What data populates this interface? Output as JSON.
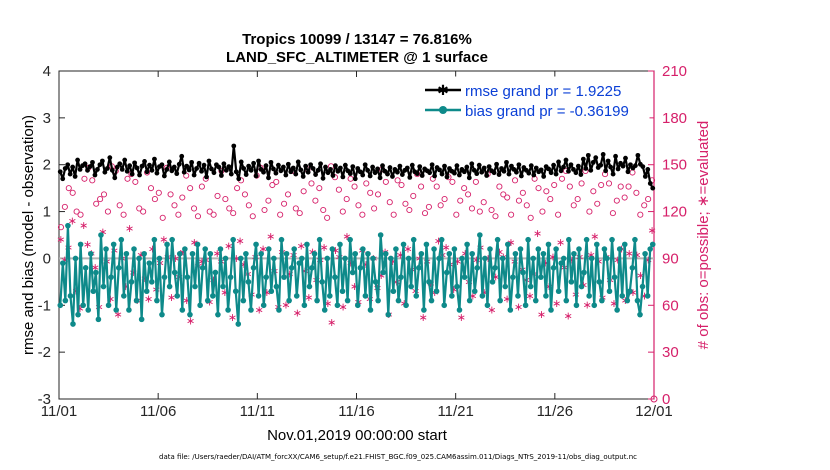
{
  "chart_data": {
    "type": "line",
    "title": "Tropics 10099 / 13147 = 76.816%",
    "subtitle": "LAND_SFC_ALTIMETER @ 1 surface",
    "xlabel": "Nov.01,2019 00:00:00 start",
    "ylabel_left": "rmse and bias (model - observation)",
    "ylabel_right": "# of obs: o=possible; ∗=evaluated",
    "xlim": [
      0,
      30
    ],
    "ylim_left": [
      -3,
      4
    ],
    "ylim_right": [
      0,
      210
    ],
    "x_ticks": [
      {
        "value": 0,
        "label": "11/01"
      },
      {
        "value": 5,
        "label": "11/06"
      },
      {
        "value": 10,
        "label": "11/11"
      },
      {
        "value": 15,
        "label": "11/16"
      },
      {
        "value": 20,
        "label": "11/21"
      },
      {
        "value": 25,
        "label": "11/26"
      },
      {
        "value": 30,
        "label": "12/01"
      }
    ],
    "y_ticks_left": [
      "-3",
      "-2",
      "-1",
      "0",
      "1",
      "2",
      "3",
      "4"
    ],
    "y_ticks_right": [
      "0",
      "30",
      "60",
      "90",
      "120",
      "150",
      "180",
      "210"
    ],
    "zero_line": 0,
    "legend": [
      {
        "label": "rmse grand pr = 1.9225",
        "color": "#000000",
        "marker": "star"
      },
      {
        "label": "bias grand pr = -0.36199",
        "color": "#0e8a8a",
        "marker": "circle"
      }
    ],
    "series": [
      {
        "name": "rmse",
        "color": "#000000",
        "values": [
          1.85,
          1.7,
          1.92,
          2.0,
          1.8,
          1.95,
          1.75,
          2.1,
          1.9,
          1.98,
          2.02,
          1.88,
          1.96,
          2.05,
          1.78,
          1.9,
          2.0,
          2.08,
          1.84,
          1.92,
          2.15,
          1.88,
          1.72,
          1.95,
          2.02,
          1.9,
          2.1,
          1.86,
          1.98,
          1.8,
          2.04,
          1.93,
          1.78,
          1.97,
          2.07,
          1.85,
          1.99,
          1.88,
          2.12,
          1.82,
          1.96,
          2.0,
          1.76,
          1.9,
          2.06,
          1.87,
          1.95,
          1.81,
          2.01,
          2.18,
          1.84,
          1.97,
          1.89,
          2.05,
          1.78,
          1.92,
          2.03,
          1.86,
          1.99,
          1.74,
          2.08,
          1.91,
          1.83,
          2.0,
          1.95,
          1.77,
          2.02,
          1.88,
          1.96,
          1.8,
          2.4,
          1.85,
          1.7,
          2.06,
          1.92,
          1.79,
          1.97,
          1.88,
          2.03,
          1.76,
          2.08,
          1.9,
          1.84,
          1.98,
          1.72,
          2.05,
          1.91,
          1.82,
          1.99,
          1.87,
          1.95,
          1.78,
          2.01,
          1.85,
          1.93,
          1.8,
          2.06,
          1.89,
          1.75,
          1.97,
          1.84,
          2.0,
          1.92,
          1.79,
          1.88,
          2.02,
          1.71,
          1.95,
          1.83,
          1.9,
          1.77,
          1.98,
          1.86,
          1.93,
          1.74,
          1.99,
          1.87,
          1.81,
          1.96,
          1.7,
          1.92,
          1.85,
          1.78,
          2.0,
          1.88,
          1.76,
          1.95,
          1.83,
          1.91,
          1.72,
          1.98,
          1.86,
          1.8,
          1.94,
          1.75,
          1.9,
          1.84,
          1.97,
          1.79,
          1.88,
          1.93,
          1.73,
          1.99,
          1.85,
          1.81,
          1.96,
          1.77,
          1.91,
          1.87,
          1.83,
          2.0,
          1.76,
          1.94,
          1.89,
          1.8,
          1.97,
          1.74,
          1.92,
          1.86,
          1.82,
          1.98,
          1.78,
          1.9,
          1.85,
          1.95,
          1.72,
          2.02,
          1.88,
          1.81,
          1.99,
          1.84,
          1.93,
          1.77,
          1.96,
          1.87,
          1.83,
          2.01,
          1.79,
          1.92,
          1.86,
          2.05,
          1.8,
          1.97,
          1.9,
          1.84,
          2.0,
          1.76,
          1.94,
          1.88,
          1.82,
          1.98,
          1.78,
          1.93,
          1.85,
          1.89,
          1.75,
          1.96,
          1.91,
          1.83,
          1.99,
          1.8,
          2.06,
          1.87,
          1.95,
          2.1,
          1.86,
          2.0,
          1.9,
          1.83,
          1.97,
          1.79,
          2.12,
          1.92,
          2.2,
          1.88,
          2.05,
          2.15,
          1.94,
          1.99,
          2.22,
          1.87,
          2.08,
          1.95,
          1.8,
          2.18,
          1.91,
          2.03,
          1.97,
          2.14,
          1.85,
          2.0,
          1.93,
          1.98,
          2.2,
          2.01,
          1.96,
          1.75,
          1.9,
          1.6,
          1.5
        ]
      },
      {
        "name": "bias",
        "color": "#0e8a8a",
        "values": [
          -1.0,
          -0.1,
          -0.9,
          0.7,
          -0.8,
          -1.4,
          0.0,
          -1.2,
          0.3,
          -1.0,
          -0.2,
          -1.1,
          0.1,
          -0.7,
          -0.3,
          -1.3,
          0.5,
          -0.6,
          0.2,
          -1.0,
          -0.4,
          0.3,
          -1.1,
          -0.2,
          0.4,
          -0.8,
          0.1,
          -1.1,
          -0.5,
          0.2,
          -0.9,
          0.0,
          -1.3,
          0.1,
          -0.7,
          -0.1,
          -0.5,
          0.4,
          -0.9,
          0.0,
          -1.2,
          -0.4,
          0.3,
          -0.6,
          0.4,
          -0.3,
          -0.8,
          0.1,
          -1.1,
          0.2,
          -0.4,
          -1.2,
          0.1,
          -0.6,
          0.3,
          -1.0,
          -0.2,
          0.2,
          -0.9,
          0.1,
          -0.8,
          -0.3,
          -1.2,
          0.2,
          -0.6,
          0.0,
          -1.1,
          -0.4,
          0.4,
          -0.7,
          -1.4,
          0.0,
          -0.9,
          0.1,
          -0.5,
          -1.1,
          -0.2,
          0.3,
          -0.8,
          0.1,
          -1.0,
          -0.4,
          0.2,
          -0.7,
          0.0,
          -0.6,
          -1.1,
          0.4,
          -0.4,
          0.1,
          -0.9,
          -0.2,
          0.2,
          -0.8,
          -0.1,
          0.0,
          -1.0,
          0.3,
          -0.6,
          -0.2,
          0.1,
          -0.9,
          0.4,
          -0.5,
          -1.1,
          0.0,
          -0.8,
          0.2,
          -0.4,
          -1.0,
          0.3,
          -0.7,
          0.0,
          -0.9,
          0.4,
          -0.3,
          0.1,
          -1.0,
          -0.2,
          0.2,
          -0.8,
          0.1,
          -1.1,
          0.0,
          -0.5,
          -0.9,
          0.5,
          -0.3,
          0.1,
          -1.2,
          0.0,
          -0.7,
          0.2,
          -0.9,
          -0.4,
          0.3,
          -1.0,
          0.0,
          -0.6,
          0.4,
          -0.8,
          -0.2,
          0.1,
          -1.1,
          0.3,
          -0.5,
          -0.9,
          0.2,
          -0.7,
          0.0,
          0.4,
          -1.0,
          -0.3,
          0.1,
          -0.8,
          0.2,
          -0.6,
          -1.1,
          0.0,
          -0.4,
          0.3,
          -0.9,
          0.1,
          -0.7,
          -0.2,
          0.5,
          -0.8,
          0.0,
          -1.0,
          0.2,
          -0.5,
          -0.2,
          0.4,
          -0.9,
          0.0,
          -0.6,
          0.3,
          -1.1,
          -0.4,
          0.1,
          -0.8,
          0.2,
          -0.3,
          -1.0,
          0.4,
          -0.6,
          0.0,
          -0.9,
          0.2,
          -0.4,
          0.1,
          -0.8,
          0.3,
          -1.1,
          -0.2,
          0.2,
          -0.7,
          -0.1,
          0.0,
          -0.9,
          0.4,
          -0.5,
          0.1,
          -1.0,
          0.2,
          -0.6,
          -0.3,
          0.4,
          -0.8,
          0.0,
          -1.0,
          0.3,
          -0.5,
          -0.9,
          0.2,
          0.0,
          -0.7,
          0.4,
          -0.4,
          -1.1,
          0.2,
          -0.8,
          0.3,
          -0.9,
          -0.7,
          -0.2,
          0.4,
          -0.9,
          -1.2,
          -0.6,
          0.1,
          -0.8,
          0.2,
          0.3
        ]
      },
      {
        "name": "possible",
        "color": "#d6206a",
        "marker": "o",
        "values": [
          110,
          123,
          135,
          132,
          120,
          118,
          141,
          148,
          140,
          125,
          128,
          131,
          120,
          149,
          146,
          124,
          118,
          141,
          144,
          139,
          122,
          120,
          145,
          135,
          128,
          132,
          116,
          148,
          131,
          124,
          118,
          129,
          143,
          135,
          122,
          117,
          136,
          141,
          120,
          118,
          130,
          146,
          128,
          122,
          119,
          135,
          140,
          131,
          124,
          117,
          143,
          148,
          121,
          127,
          137,
          139,
          118,
          125,
          131,
          146,
          122,
          119,
          133,
          147,
          138,
          127,
          135,
          121,
          116,
          149,
          142,
          134,
          120,
          128,
          141,
          136,
          124,
          118,
          138,
          132,
          122,
          131,
          147,
          139,
          126,
          118,
          140,
          137,
          125,
          121,
          130,
          144,
          136,
          119,
          123,
          141,
          136,
          124,
          128,
          142,
          139,
          118,
          127,
          135,
          131,
          122,
          139,
          120,
          126,
          144,
          121,
          117,
          136,
          131,
          129,
          118,
          140,
          127,
          132,
          124,
          116,
          141,
          135,
          120,
          133,
          128,
          137,
          118,
          141,
          146,
          136,
          124,
          128,
          138,
          146,
          120,
          133,
          125,
          137,
          144,
          138,
          119,
          127,
          136,
          129,
          136,
          145,
          132,
          118,
          124,
          128,
          140
        ]
      },
      {
        "name": "evaluated",
        "color": "#d6206a",
        "marker": "*",
        "values": [
          103,
          90,
          98,
          115,
          70,
          59,
          112,
          100,
          94,
          85,
          60,
          108,
          89,
          65,
          96,
          55,
          91,
          73,
          110,
          82,
          64,
          93,
          78,
          65,
          97,
          71,
          88,
          103,
          92,
          66,
          91,
          79,
          95,
          64,
          51,
          101,
          86,
          89,
          90,
          63,
          77,
          94,
          89,
          69,
          99,
          53,
          91,
          102,
          87,
          81,
          68,
          92,
          58,
          97,
          69,
          105,
          83,
          60,
          95,
          61,
          81,
          93,
          56,
          99,
          83,
          66,
          95,
          77,
          90,
          98,
          62,
          50,
          96,
          92,
          60,
          105,
          88,
          73,
          63,
          96,
          87,
          65,
          91,
          72,
          80,
          95,
          55,
          89,
          76,
          93,
          62,
          97,
          84,
          70,
          91,
          53,
          89,
          75,
          69,
          102,
          93,
          98,
          87,
          71,
          89,
          53,
          94,
          76,
          67,
          90,
          98,
          69,
          91,
          58,
          79,
          95,
          92,
          65,
          101,
          89,
          60,
          84,
          77,
          67,
          81,
          107,
          55,
          88,
          73,
          92,
          62,
          101,
          85,
          54,
          90,
          68,
          92,
          74,
          61,
          93,
          105,
          89,
          66,
          92,
          77,
          62,
          90,
          97,
          64,
          94,
          69,
          93,
          80,
          67,
          90,
          109
        ]
      }
    ]
  },
  "footer": {
    "datafile": "data file: /Users/raeder/DAI/ATM_forcXX/CAM6_setup/f.e21.FHIST_BGC.f09_025.CAM6assim.011/Diags_NTrS_2019-11/obs_diag_output.nc"
  },
  "colors": {
    "rmse": "#000000",
    "bias": "#0e8a8a",
    "obs": "#d6206a",
    "legend_text": "#0a3fd6",
    "zero_line": "#b4b4b4"
  }
}
